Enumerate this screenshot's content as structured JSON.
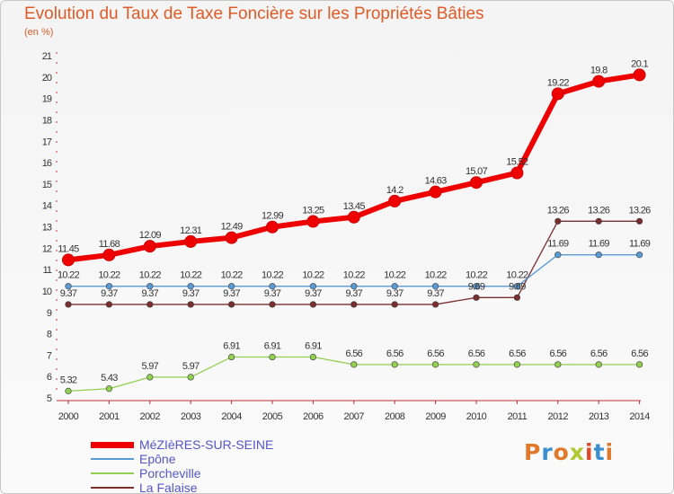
{
  "header": {
    "title": "Evolution du Taux de Taxe Foncière sur les Propriétés Bâties",
    "subtitle": "(en %)"
  },
  "logo": {
    "text": "Proxiti",
    "colors": [
      "#e07a2a",
      "#3a8fd0",
      "#e07a2a",
      "#b0c832",
      "#e04a2a",
      "#3a8fd0",
      "#e07a2a"
    ]
  },
  "chart_data": {
    "type": "line",
    "title": "Evolution du Taux de Taxe Foncière sur les Propriétés Bâties",
    "ylabel": "(en %)",
    "xlabel": "",
    "ylim": [
      5,
      21
    ],
    "yticks": [
      5,
      6,
      7,
      8,
      9,
      10,
      11,
      12,
      13,
      14,
      15,
      16,
      17,
      18,
      19,
      20,
      21
    ],
    "categories": [
      "2000",
      "2001",
      "2002",
      "2003",
      "2004",
      "2005",
      "2006",
      "2007",
      "2008",
      "2009",
      "2010",
      "2011",
      "2012",
      "2013",
      "2014"
    ],
    "legend_position": "bottom-left",
    "grid": false,
    "series": [
      {
        "name": "MéZIèRES-SUR-SEINE",
        "color": "#ee0000",
        "values": [
          11.45,
          11.68,
          12.09,
          12.31,
          12.49,
          12.99,
          13.25,
          13.45,
          14.2,
          14.63,
          15.07,
          15.52,
          19.22,
          19.8,
          20.1
        ],
        "labels": [
          "11.45",
          "11.68",
          "12.09",
          "12.31",
          "12.49",
          "12.99",
          "13.25",
          "13.45",
          "14.2",
          "14.63",
          "15.07",
          "15.52",
          "19.22",
          "19.8",
          "20.1"
        ]
      },
      {
        "name": "Epône",
        "color": "#5b9bd5",
        "values": [
          10.22,
          10.22,
          10.22,
          10.22,
          10.22,
          10.22,
          10.22,
          10.22,
          10.22,
          10.22,
          10.22,
          10.22,
          11.69,
          11.69,
          11.69
        ],
        "labels": [
          "10.22",
          "10.22",
          "10.22",
          "10.22",
          "10.22",
          "10.22",
          "10.22",
          "10.22",
          "10.22",
          "10.22",
          "10.22",
          "10.22",
          "11.69",
          "11.69",
          "11.69"
        ]
      },
      {
        "name": "Porcheville",
        "color": "#92d050",
        "values": [
          5.32,
          5.43,
          5.97,
          5.97,
          6.91,
          6.91,
          6.91,
          6.56,
          6.56,
          6.56,
          6.56,
          6.56,
          6.56,
          6.56,
          6.56
        ],
        "labels": [
          "5.32",
          "5.43",
          "5.97",
          "5.97",
          "6.91",
          "6.91",
          "6.91",
          "6.56",
          "6.56",
          "6.56",
          "6.56",
          "6.56",
          "6.56",
          "6.56",
          "6.56"
        ]
      },
      {
        "name": "La Falaise",
        "color": "#7a2e2e",
        "values": [
          9.37,
          9.37,
          9.37,
          9.37,
          9.37,
          9.37,
          9.37,
          9.37,
          9.37,
          9.37,
          9.69,
          9.69,
          13.26,
          13.26,
          13.26
        ],
        "labels": [
          "9.37",
          "9.37",
          "9.37",
          "9.37",
          "9.37",
          "9.37",
          "9.37",
          "9.37",
          "9.37",
          "9.37",
          "9.69",
          "9.69",
          "13.26",
          "13.26",
          "13.26"
        ]
      }
    ]
  }
}
